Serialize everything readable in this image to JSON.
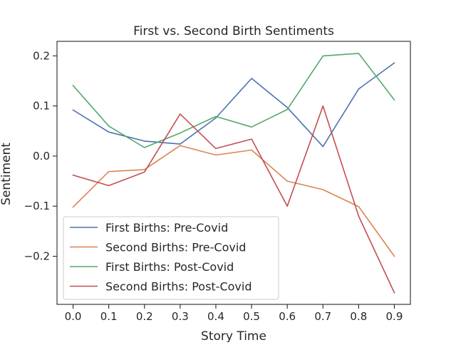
{
  "chart_data": {
    "type": "line",
    "title": "First vs. Second Birth Sentiments",
    "xlabel": "Story Time",
    "ylabel": "Sentiment",
    "xlim": [
      -0.045,
      0.945
    ],
    "ylim": [
      -0.296,
      0.229
    ],
    "x_ticks": [
      0.0,
      0.1,
      0.2,
      0.3,
      0.4,
      0.5,
      0.6,
      0.7,
      0.8,
      0.9
    ],
    "x_tick_labels": [
      "0.0",
      "0.1",
      "0.2",
      "0.3",
      "0.4",
      "0.5",
      "0.6",
      "0.7",
      "0.8",
      "0.9"
    ],
    "y_ticks": [
      0.2,
      0.1,
      0.0,
      -0.1,
      -0.2
    ],
    "y_tick_labels": [
      "0.2",
      "0.1",
      "0.0",
      "−0.1",
      "−0.2"
    ],
    "grid": false,
    "legend_position": "lower-left",
    "x": [
      0.0,
      0.1,
      0.2,
      0.3,
      0.4,
      0.5,
      0.6,
      0.7,
      0.8,
      0.9
    ],
    "series": [
      {
        "name": "First Births: Pre-Covid",
        "color": "#4c72b0",
        "values": [
          0.092,
          0.048,
          0.03,
          0.024,
          0.076,
          0.155,
          0.097,
          0.019,
          0.134,
          0.186
        ]
      },
      {
        "name": "Second Births: Pre-Covid",
        "color": "#dd8452",
        "values": [
          -0.102,
          -0.031,
          -0.027,
          0.021,
          0.002,
          0.012,
          -0.05,
          -0.067,
          -0.101,
          -0.2
        ]
      },
      {
        "name": "First Births: Post-Covid",
        "color": "#55a868",
        "values": [
          0.141,
          0.06,
          0.017,
          0.046,
          0.079,
          0.058,
          0.093,
          0.2,
          0.205,
          0.112
        ]
      },
      {
        "name": "Second Births: Post-Covid",
        "color": "#c44e52",
        "values": [
          -0.038,
          -0.059,
          -0.032,
          0.084,
          0.015,
          0.034,
          -0.1,
          0.1,
          -0.12,
          -0.273
        ]
      }
    ]
  }
}
